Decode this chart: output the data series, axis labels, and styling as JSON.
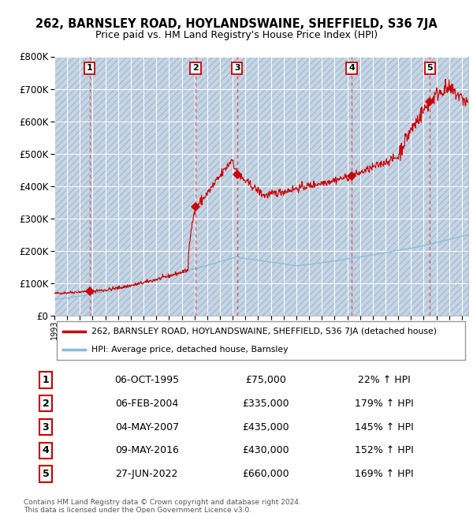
{
  "title": "262, BARNSLEY ROAD, HOYLANDSWAINE, SHEFFIELD, S36 7JA",
  "subtitle": "Price paid vs. HM Land Registry's House Price Index (HPI)",
  "sales": [
    {
      "label": "1",
      "year": 1995.77,
      "price": 75000,
      "date": "06-OCT-1995",
      "hpi_pct": "22% ↑ HPI"
    },
    {
      "label": "2",
      "year": 2004.09,
      "price": 335000,
      "date": "06-FEB-2004",
      "hpi_pct": "179% ↑ HPI"
    },
    {
      "label": "3",
      "year": 2007.34,
      "price": 435000,
      "date": "04-MAY-2007",
      "hpi_pct": "145% ↑ HPI"
    },
    {
      "label": "4",
      "year": 2016.35,
      "price": 430000,
      "date": "09-MAY-2016",
      "hpi_pct": "152% ↑ HPI"
    },
    {
      "label": "5",
      "year": 2022.49,
      "price": 660000,
      "date": "27-JUN-2022",
      "hpi_pct": "169% ↑ HPI"
    }
  ],
  "legend_red": "262, BARNSLEY ROAD, HOYLANDSWAINE, SHEFFIELD, S36 7JA (detached house)",
  "legend_blue": "HPI: Average price, detached house, Barnsley",
  "footer1": "Contains HM Land Registry data © Crown copyright and database right 2024.",
  "footer2": "This data is licensed under the Open Government Licence v3.0.",
  "ylim": [
    0,
    800000
  ],
  "xmin": 1993,
  "xmax": 2025,
  "bg_color": "#dce9f5",
  "hatch_color": "#c0cfdf",
  "red_color": "#cc0000",
  "blue_color": "#88bbdd",
  "vline_color": "#dd4444"
}
